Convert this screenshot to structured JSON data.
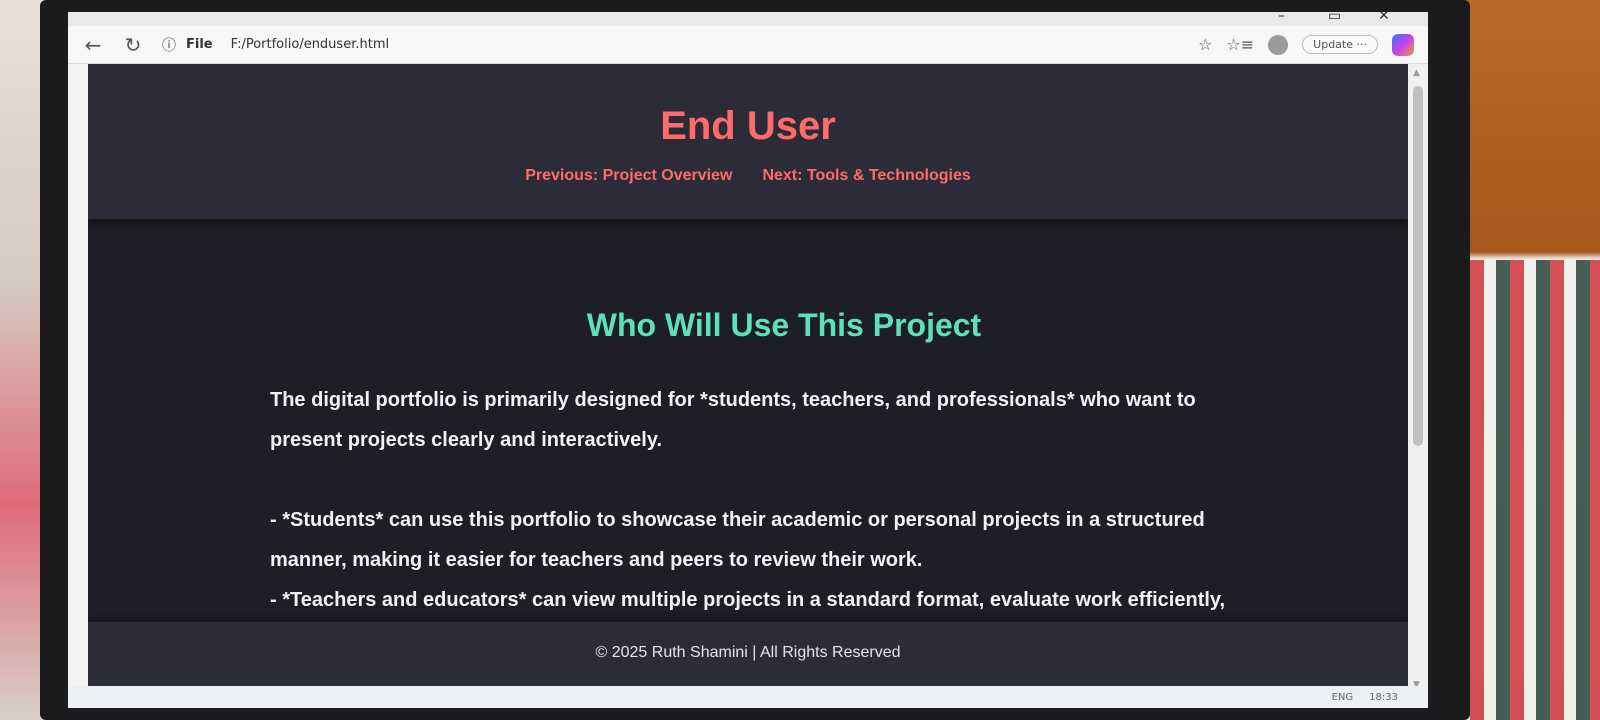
{
  "browser": {
    "address": {
      "protocol_label": "File",
      "url": "F:/Portfolio/enduser.html"
    },
    "update_label": "Update",
    "more_label": "···"
  },
  "page": {
    "title": "End User",
    "nav": {
      "previous_label": "Previous: Project Overview",
      "next_label": "Next: Tools & Technologies"
    },
    "section_title": "Who Will Use This Project",
    "paragraphs": [
      "The digital portfolio is primarily designed for *students, teachers, and professionals* who want to present projects clearly and interactively.",
      "- *Students* can use this portfolio to showcase their academic or personal projects in a structured manner, making it easier for teachers and peers to review their work.",
      "- *Teachers and educators* can view multiple projects in a standard format, evaluate work efficiently, and provide constructive feedback."
    ],
    "footer": "© 2025 Ruth Shamini | All Rights Reserved"
  },
  "taskbar": {
    "language": "ENG",
    "time": "18:33"
  },
  "colors": {
    "title_accent": "#ff6b6b",
    "section_accent": "#5ee0b8",
    "page_bg": "#1e1f26",
    "header_bg": "#2b2c38"
  },
  "icons": [
    "back-arrow-icon",
    "refresh-icon",
    "info-icon",
    "favorite-star-icon",
    "favorites-list-icon",
    "profile-avatar-icon",
    "copilot-icon",
    "minimize-icon",
    "restore-icon",
    "close-icon"
  ]
}
